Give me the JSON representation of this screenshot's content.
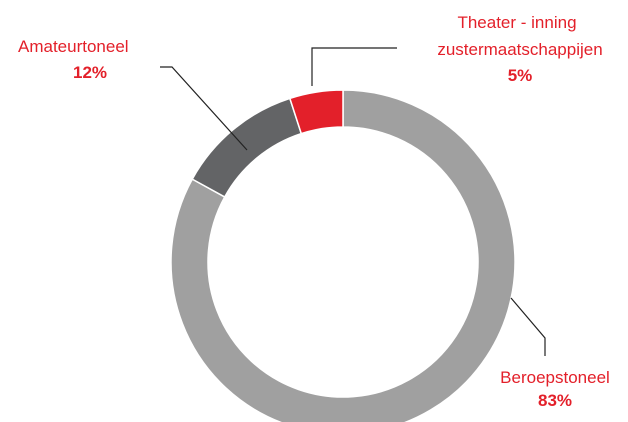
{
  "chart_data": {
    "type": "donut",
    "categories": [
      "Beroepstoneel",
      "Amateurtoneel",
      [
        "Theater - inning",
        "zustermaatschappijen"
      ]
    ],
    "values": [
      83,
      12,
      5
    ],
    "value_labels": [
      "83%",
      "12%",
      "5%"
    ],
    "colors": [
      "#a0a0a0",
      "#636466",
      "#e3202a"
    ]
  }
}
